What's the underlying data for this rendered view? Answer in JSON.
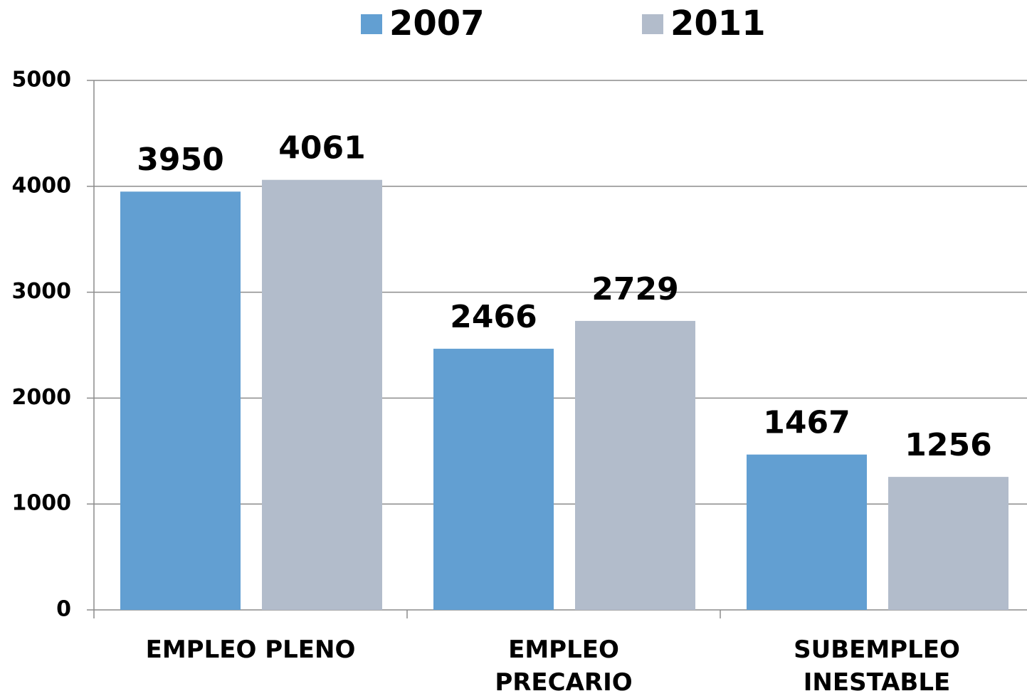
{
  "chart_data": {
    "type": "bar",
    "categories": [
      "EMPLEO PLENO",
      "EMPLEO PRECARIO",
      "SUBEMPLEO INESTABLE"
    ],
    "series": [
      {
        "name": "2007",
        "color": "#629fd2",
        "values": [
          3950,
          2466,
          1467
        ]
      },
      {
        "name": "2011",
        "color": "#b2bccb",
        "values": [
          4061,
          2729,
          1256
        ]
      }
    ],
    "ylim": [
      0,
      5000
    ],
    "yticks": [
      0,
      1000,
      2000,
      3000,
      4000,
      5000
    ],
    "grid": true,
    "legend": "top"
  }
}
